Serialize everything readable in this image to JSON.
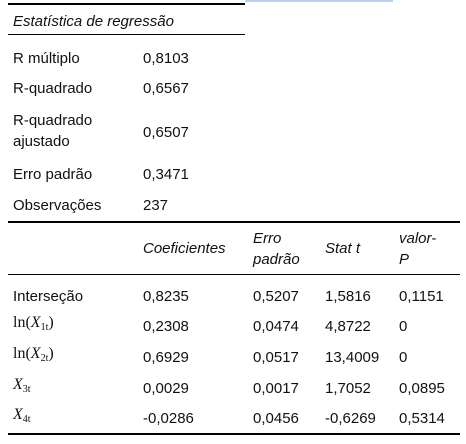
{
  "stats": {
    "title": "Estatística de regressão",
    "rows": [
      {
        "label": "R múltiplo",
        "value": "0,8103"
      },
      {
        "label": "R-quadrado",
        "value": "0,6567"
      },
      {
        "label_line1": "R-quadrado",
        "label_line2": "ajustado",
        "value": "0,6507"
      },
      {
        "label": "Erro padrão",
        "value": "0,3471"
      },
      {
        "label": "Observações",
        "value": "237"
      }
    ]
  },
  "coef": {
    "headers": {
      "coef": "Coeficientes",
      "se_line1": "Erro",
      "se_line2": "padrão",
      "t": "Stat t",
      "p_line1": "valor-",
      "p_line2": "P"
    },
    "rows": [
      {
        "label": "Interseção",
        "coef": "0,8235",
        "se": "0,5207",
        "t": "1,5816",
        "p": "0,1151"
      },
      {
        "func": "ln",
        "var": "X",
        "sub": "1t",
        "coef": "0,2308",
        "se": "0,0474",
        "t": "4,8722",
        "p": "0"
      },
      {
        "func": "ln",
        "var": "X",
        "sub": "2t",
        "coef": "0,6929",
        "se": "0,0517",
        "t": "13,4009",
        "p": "0"
      },
      {
        "var": "X",
        "sub": "3t",
        "coef": "0,0029",
        "se": "0,0017",
        "t": "1,7052",
        "p": "0,0895"
      },
      {
        "var": "X",
        "sub": "4t",
        "coef": "-0,0286",
        "se": "0,0456",
        "t": "-0,6269",
        "p": "0,5314"
      }
    ]
  }
}
